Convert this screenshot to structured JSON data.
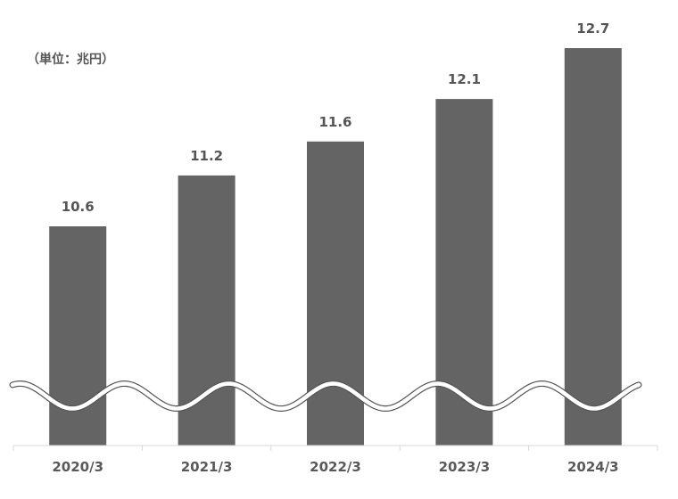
{
  "chart_data": {
    "type": "bar",
    "unit_label": "（単位：兆円）",
    "categories": [
      "2020/3",
      "2021/3",
      "2022/3",
      "2023/3",
      "2024/3"
    ],
    "values": [
      10.6,
      11.2,
      11.6,
      12.1,
      12.7
    ],
    "value_labels": [
      "10.6",
      "11.2",
      "11.6",
      "12.1",
      "12.7"
    ],
    "axis_break": true,
    "bar_color": "#646464",
    "axis_color": "#d9d9d9",
    "label_color": "#595959"
  }
}
